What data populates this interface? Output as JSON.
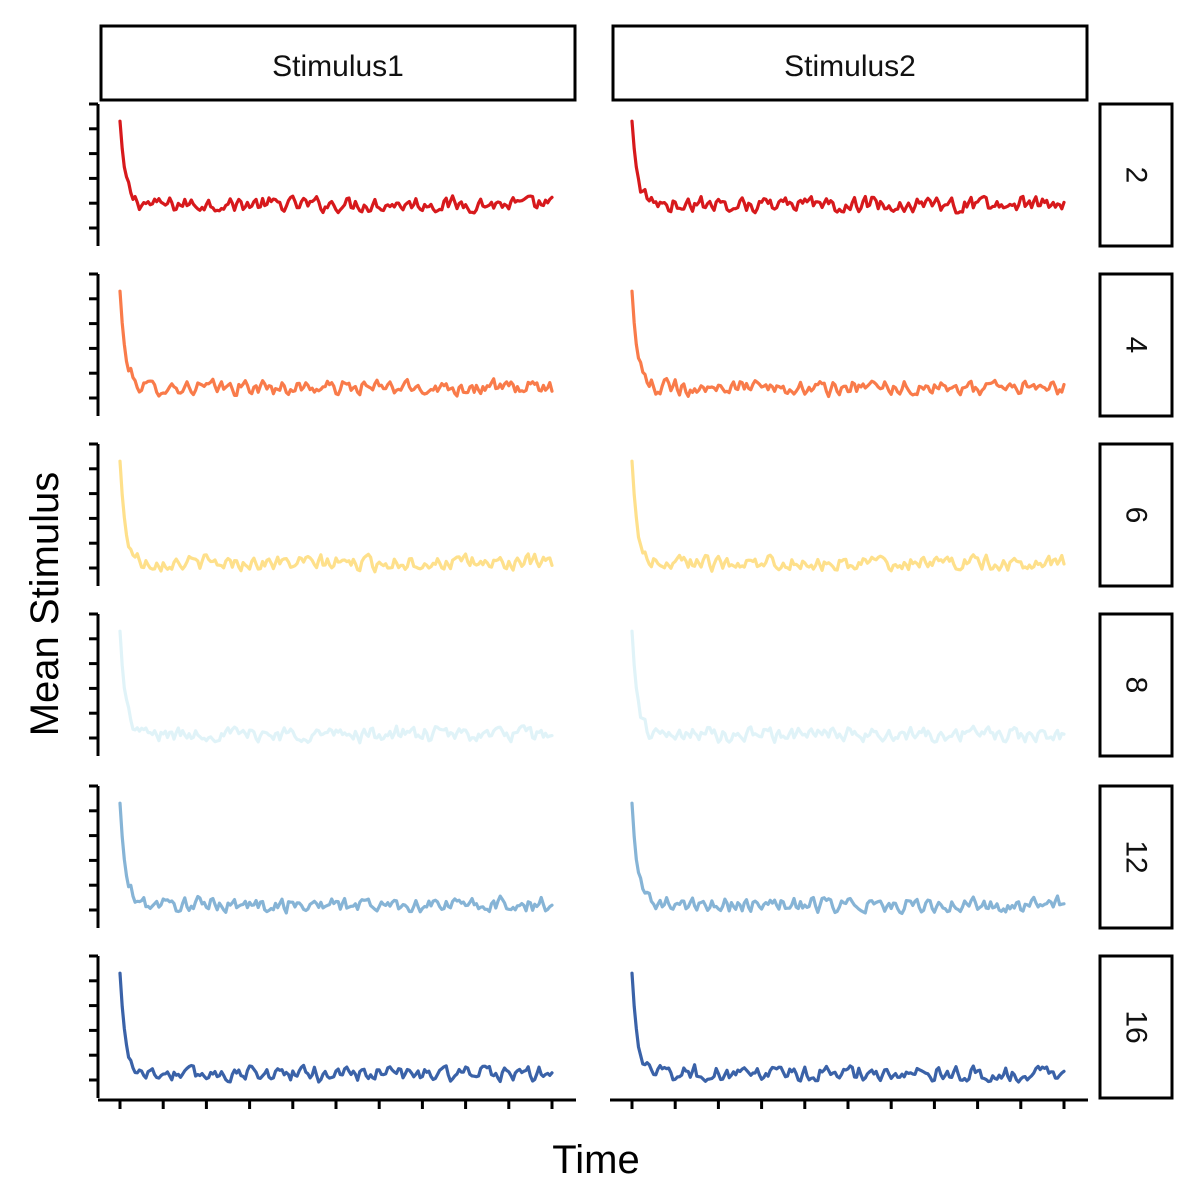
{
  "chart_data": {
    "type": "line",
    "title": "",
    "xlabel": "Time",
    "ylabel": "Mean Stimulus",
    "x_tick_labels_shown": false,
    "y_tick_labels_shown": false,
    "x_tick_count": 11,
    "y_tick_count": 6,
    "grid": false,
    "legend": "none",
    "column_facets": [
      "Stimulus1",
      "Stimulus2"
    ],
    "row_facets": [
      "2",
      "4",
      "6",
      "8",
      "12",
      "16"
    ],
    "row_colors": [
      "#d7191c",
      "#f97b4a",
      "#fee08b",
      "#e0f3f8",
      "#86b4d6",
      "#3a62a8"
    ],
    "series_description": {
      "x_range": [
        0,
        200
      ],
      "ylim": [
        0,
        1
      ],
      "initial_value": 0.9,
      "plateau_value_by_row": [
        0.27,
        0.17,
        0.13,
        0.12,
        0.13,
        0.14
      ],
      "decay_rate": 0.4,
      "noise_amplitude": 0.1
    }
  }
}
